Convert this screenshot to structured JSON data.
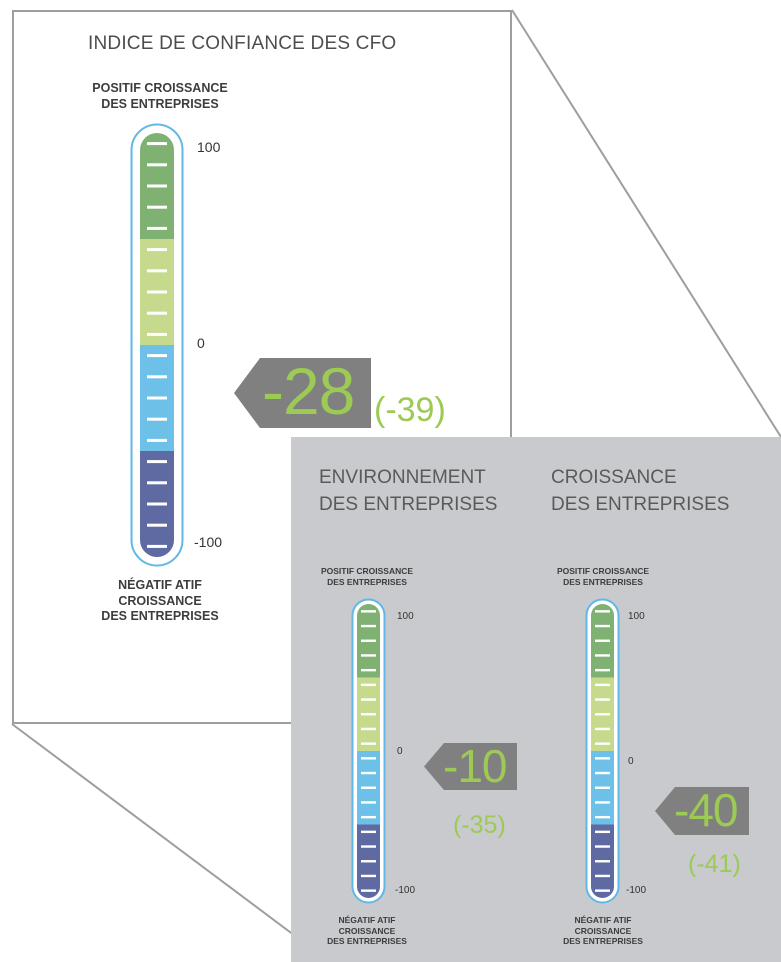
{
  "chart_data": [
    {
      "type": "gauge",
      "title": "INDICE DE CONFIANCE DES CFO",
      "top_label": [
        "POSITIF CROISSANCE",
        "DES ENTREPRISES"
      ],
      "bottom_label": [
        "NÉGATIF ATIF",
        "CROISSANCE",
        "DES ENTREPRISES"
      ],
      "ticks": [
        "100",
        "0",
        "-100"
      ],
      "range": [
        -100,
        100
      ],
      "value": -28,
      "value_label": "-28",
      "previous_label": "(-39)"
    },
    {
      "type": "gauge",
      "title": [
        "ENVIRONNEMENT",
        "DES ENTREPRISES"
      ],
      "top_label": [
        "POSITIF CROISSANCE",
        "DES ENTREPRISES"
      ],
      "bottom_label": [
        "NÉGATIF ATIF",
        "CROISSANCE",
        "DES ENTREPRISES"
      ],
      "ticks": [
        "100",
        "0",
        "-100"
      ],
      "range": [
        -100,
        100
      ],
      "value": -10,
      "value_label": "-10",
      "previous_label": "(-35)"
    },
    {
      "type": "gauge",
      "title": [
        "CROISSANCE",
        "DES ENTREPRISES"
      ],
      "top_label": [
        "POSITIF CROISSANCE",
        "DES ENTREPRISES"
      ],
      "bottom_label": [
        "NÉGATIF ATIF",
        "CROISSANCE",
        "DES ENTREPRISES"
      ],
      "ticks": [
        "100",
        "0",
        "-100"
      ],
      "range": [
        -100,
        100
      ],
      "value": -40,
      "value_label": "-40",
      "previous_label": "(-41)"
    }
  ],
  "colors": {
    "band_top": "#7fb172",
    "band_upper_mid": "#c6da8e",
    "band_lower_mid": "#6dc0e8",
    "band_bottom": "#5f6aa3",
    "outline": "#5fb8e6",
    "pointer": "#808080",
    "value_text": "#9cca54",
    "panel_grey": "#c9cacd",
    "frame_line": "#9e9e9e"
  }
}
